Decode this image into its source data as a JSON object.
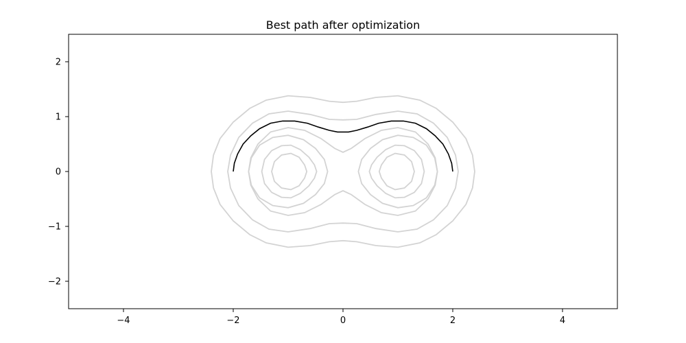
{
  "chart_data": {
    "type": "line",
    "title": "Best path after optimization",
    "xlabel": "",
    "ylabel": "",
    "xlim": [
      -5,
      5
    ],
    "ylim": [
      -2.5,
      2.5
    ],
    "xticks": [
      -4,
      -2,
      0,
      2,
      4
    ],
    "yticks": [
      -2,
      -1,
      0,
      1,
      2
    ],
    "xtick_labels": [
      "−4",
      "−2",
      "0",
      "2",
      "4"
    ],
    "ytick_labels": [
      "−2",
      "−1",
      "0",
      "1",
      "2"
    ],
    "grid": false,
    "legend": "none",
    "contours": {
      "color": "#d3d3d3",
      "rings": [
        {
          "upper": [
            [
              -2.4,
              0
            ],
            [
              -2.36,
              0.3
            ],
            [
              -2.24,
              0.6
            ],
            [
              -2.0,
              0.9
            ],
            [
              -1.7,
              1.15
            ],
            [
              -1.4,
              1.3
            ],
            [
              -1.0,
              1.38
            ],
            [
              -0.6,
              1.35
            ],
            [
              -0.25,
              1.28
            ],
            [
              0,
              1.26
            ],
            [
              0.25,
              1.28
            ],
            [
              0.6,
              1.35
            ],
            [
              1.0,
              1.38
            ],
            [
              1.4,
              1.3
            ],
            [
              1.7,
              1.15
            ],
            [
              2.0,
              0.9
            ],
            [
              2.24,
              0.6
            ],
            [
              2.36,
              0.3
            ],
            [
              2.4,
              0
            ]
          ]
        },
        {
          "upper": [
            [
              -2.1,
              0
            ],
            [
              -2.05,
              0.3
            ],
            [
              -1.9,
              0.62
            ],
            [
              -1.65,
              0.88
            ],
            [
              -1.35,
              1.05
            ],
            [
              -1.0,
              1.1
            ],
            [
              -0.6,
              1.04
            ],
            [
              -0.25,
              0.95
            ],
            [
              0,
              0.94
            ],
            [
              0.25,
              0.95
            ],
            [
              0.6,
              1.04
            ],
            [
              1.0,
              1.1
            ],
            [
              1.35,
              1.05
            ],
            [
              1.65,
              0.88
            ],
            [
              1.9,
              0.62
            ],
            [
              2.05,
              0.3
            ],
            [
              2.1,
              0
            ]
          ]
        },
        {
          "upper": [
            [
              -1.72,
              0
            ],
            [
              -1.68,
              0.25
            ],
            [
              -1.55,
              0.5
            ],
            [
              -1.32,
              0.72
            ],
            [
              -1.0,
              0.8
            ],
            [
              -0.7,
              0.75
            ],
            [
              -0.4,
              0.6
            ],
            [
              -0.15,
              0.42
            ],
            [
              0,
              0.35
            ],
            [
              0.15,
              0.42
            ],
            [
              0.4,
              0.6
            ],
            [
              0.7,
              0.75
            ],
            [
              1.0,
              0.8
            ],
            [
              1.32,
              0.72
            ],
            [
              1.55,
              0.5
            ],
            [
              1.68,
              0.25
            ],
            [
              1.72,
              0
            ]
          ]
        },
        {
          "upper": [
            [
              -1.72,
              0
            ],
            [
              -1.67,
              0.25
            ],
            [
              -1.52,
              0.48
            ],
            [
              -1.28,
              0.62
            ],
            [
              -1.0,
              0.66
            ],
            [
              -0.72,
              0.58
            ],
            [
              -0.5,
              0.42
            ],
            [
              -0.34,
              0.22
            ],
            [
              -0.28,
              0
            ]
          ],
          "mirror_x": true
        },
        {
          "upper": [
            [
              -1.48,
              0
            ],
            [
              -1.43,
              0.22
            ],
            [
              -1.3,
              0.38
            ],
            [
              -1.12,
              0.47
            ],
            [
              -0.95,
              0.48
            ],
            [
              -0.78,
              0.4
            ],
            [
              -0.62,
              0.26
            ],
            [
              -0.52,
              0.12
            ],
            [
              -0.48,
              0
            ]
          ],
          "mirror_x": true
        },
        {
          "upper": [
            [
              -1.3,
              0
            ],
            [
              -1.25,
              0.18
            ],
            [
              -1.12,
              0.3
            ],
            [
              -0.95,
              0.33
            ],
            [
              -0.8,
              0.26
            ],
            [
              -0.7,
              0.12
            ],
            [
              -0.66,
              0
            ]
          ],
          "mirror_x": true
        }
      ]
    },
    "series": [
      {
        "color": "#000000",
        "points": [
          [
            -2.0,
            0
          ],
          [
            -1.98,
            0.15
          ],
          [
            -1.92,
            0.32
          ],
          [
            -1.82,
            0.5
          ],
          [
            -1.68,
            0.65
          ],
          [
            -1.52,
            0.78
          ],
          [
            -1.32,
            0.88
          ],
          [
            -1.1,
            0.92
          ],
          [
            -0.88,
            0.92
          ],
          [
            -0.65,
            0.88
          ],
          [
            -0.45,
            0.81
          ],
          [
            -0.25,
            0.75
          ],
          [
            -0.1,
            0.72
          ],
          [
            0,
            0.72
          ],
          [
            0.1,
            0.72
          ],
          [
            0.25,
            0.75
          ],
          [
            0.45,
            0.81
          ],
          [
            0.65,
            0.88
          ],
          [
            0.88,
            0.92
          ],
          [
            1.1,
            0.92
          ],
          [
            1.32,
            0.88
          ],
          [
            1.52,
            0.78
          ],
          [
            1.68,
            0.65
          ],
          [
            1.82,
            0.5
          ],
          [
            1.92,
            0.32
          ],
          [
            1.98,
            0.15
          ],
          [
            2.0,
            0
          ]
        ]
      }
    ]
  }
}
